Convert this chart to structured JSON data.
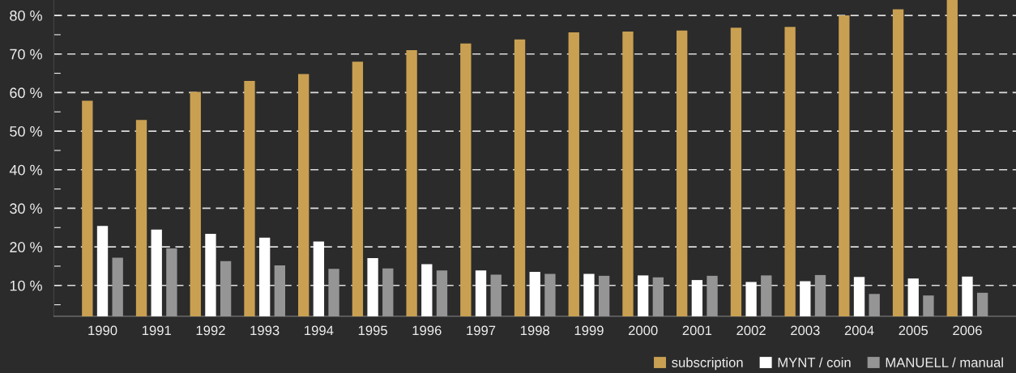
{
  "chart_data": {
    "type": "bar",
    "categories": [
      "1990",
      "1991",
      "1992",
      "1993",
      "1994",
      "1995",
      "1996",
      "1997",
      "1998",
      "1999",
      "2000",
      "2001",
      "2002",
      "2003",
      "2004",
      "2005",
      "2006"
    ],
    "series": [
      {
        "name": "subscription",
        "color": "#c9a052",
        "values": [
          57.9,
          52.9,
          60.2,
          63.0,
          64.8,
          68.0,
          71.0,
          72.7,
          73.8,
          75.6,
          75.8,
          76.1,
          76.8,
          77.0,
          80.0,
          81.6,
          84
        ]
      },
      {
        "name": "MYNT / coin",
        "color": "#ffffff",
        "values": [
          25.4,
          24.5,
          23.4,
          22.4,
          21.4,
          17.1,
          15.5,
          13.9,
          13.5,
          13.0,
          12.6,
          11.4,
          10.9,
          11.1,
          12.2,
          11.8,
          12.3
        ]
      },
      {
        "name": "MANUELL / manual",
        "color": "#959595",
        "values": [
          17.2,
          19.6,
          16.3,
          15.2,
          14.3,
          14.4,
          13.9,
          12.8,
          13.0,
          12.5,
          12.1,
          12.5,
          12.6,
          12.7,
          7.8,
          7.4,
          8.1
        ]
      }
    ],
    "ylim": [
      2,
      84
    ],
    "yticks": [
      {
        "value": 5,
        "label": null
      },
      {
        "value": 10,
        "label": "10 %"
      },
      {
        "value": 15,
        "label": null
      },
      {
        "value": 20,
        "label": "20 %"
      },
      {
        "value": 25,
        "label": null
      },
      {
        "value": 30,
        "label": "30 %"
      },
      {
        "value": 35,
        "label": null
      },
      {
        "value": 40,
        "label": "40 %"
      },
      {
        "value": 45,
        "label": null
      },
      {
        "value": 50,
        "label": "50 %"
      },
      {
        "value": 55,
        "label": null
      },
      {
        "value": 60,
        "label": "60 %"
      },
      {
        "value": 65,
        "label": null
      },
      {
        "value": 70,
        "label": "70 %"
      },
      {
        "value": 75,
        "label": null
      },
      {
        "value": 80,
        "label": "80 %"
      }
    ],
    "grid": "y",
    "line_style": "dashed",
    "legend": "bottom right"
  }
}
